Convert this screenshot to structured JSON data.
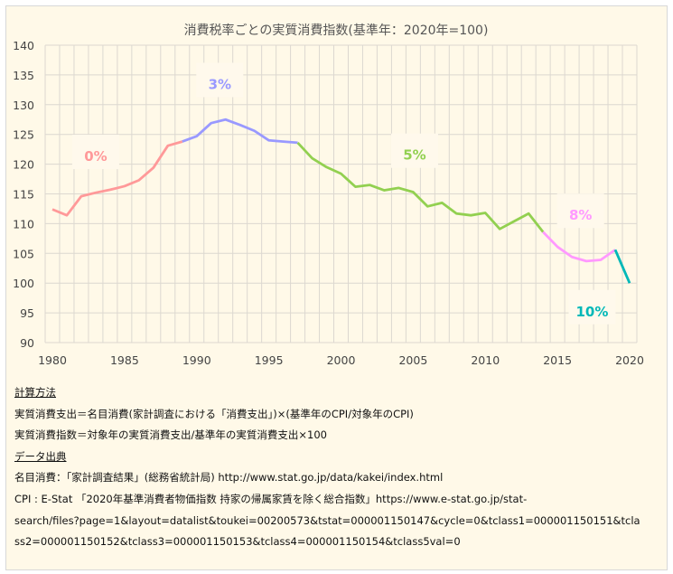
{
  "chart_data": {
    "type": "line",
    "title": "消費税率ごとの実質消費指数(基準年：2020年=100)",
    "xlabel": "",
    "ylabel": "",
    "xlim": [
      1980,
      2020
    ],
    "ylim": [
      90,
      140
    ],
    "x_ticks": [
      "1980",
      "1985",
      "1990",
      "1995",
      "2000",
      "2005",
      "2010",
      "2015",
      "2020"
    ],
    "y_ticks": [
      "90",
      "95",
      "100",
      "105",
      "110",
      "115",
      "120",
      "125",
      "130",
      "135",
      "140"
    ],
    "grid": true,
    "x": [
      1980,
      1981,
      1982,
      1983,
      1984,
      1985,
      1986,
      1987,
      1988,
      1989,
      1990,
      1991,
      1992,
      1993,
      1994,
      1995,
      1996,
      1997,
      1998,
      1999,
      2000,
      2001,
      2002,
      2003,
      2004,
      2005,
      2006,
      2007,
      2008,
      2009,
      2010,
      2011,
      2012,
      2013,
      2014,
      2015,
      2016,
      2017,
      2018,
      2019,
      2020
    ],
    "values": [
      112.4,
      111.4,
      114.6,
      115.2,
      115.7,
      116.3,
      117.3,
      119.4,
      123.1,
      123.8,
      124.7,
      126.9,
      127.5,
      126.6,
      125.6,
      124.0,
      123.8,
      123.6,
      121.0,
      119.5,
      118.4,
      116.2,
      116.5,
      115.6,
      116.0,
      115.3,
      112.9,
      113.5,
      111.7,
      111.4,
      111.8,
      109.1,
      110.4,
      111.7,
      108.6,
      106.1,
      104.4,
      103.7,
      103.9,
      105.6,
      100.0
    ],
    "segments": [
      {
        "label": "0%",
        "from": 1980,
        "to": 1989,
        "color": "#ff9999",
        "label_x": 1983,
        "label_y": 121.3
      },
      {
        "label": "3%",
        "from": 1989,
        "to": 1997,
        "color": "#9999ff",
        "label_x": 1991.6,
        "label_y": 133.4
      },
      {
        "label": "5%",
        "from": 1997,
        "to": 2014,
        "color": "#92d050",
        "label_x": 2005.1,
        "label_y": 121.5
      },
      {
        "label": "8%",
        "from": 2014,
        "to": 2019,
        "color": "#ff99ff",
        "label_x": 2016.6,
        "label_y": 111.4
      },
      {
        "label": "10%",
        "from": 2019,
        "to": 2020,
        "color": "#00b8b8",
        "label_x": 2017.4,
        "label_y": 95.2
      }
    ]
  },
  "notes": {
    "method_heading": "計算方法",
    "method_line1": "実質消費支出＝名目消費(家計調査における「消費支出」)×(基準年のCPI/対象年のCPI)",
    "method_line2": "実質消費指数＝対象年の実質消費支出/基準年の実質消費支出×100",
    "source_heading": "データ出典",
    "source_line1": "名目消費：「家計調査結果」(総務省統計局) http://www.stat.go.jp/data/kakei/index.html",
    "source_line2": "CPI : E-Stat 「2020年基準消費者物価指数 持家の帰属家賃を除く総合指数」https://www.e-stat.go.jp/stat-",
    "source_line3": "search/files?page=1&layout=datalist&toukei=00200573&tstat=000001150147&cycle=0&tclass1=000001150151&tcla",
    "source_line4": "ss2=000001150152&tclass3=000001150153&tclass4=000001150154&tclass5val=0"
  }
}
